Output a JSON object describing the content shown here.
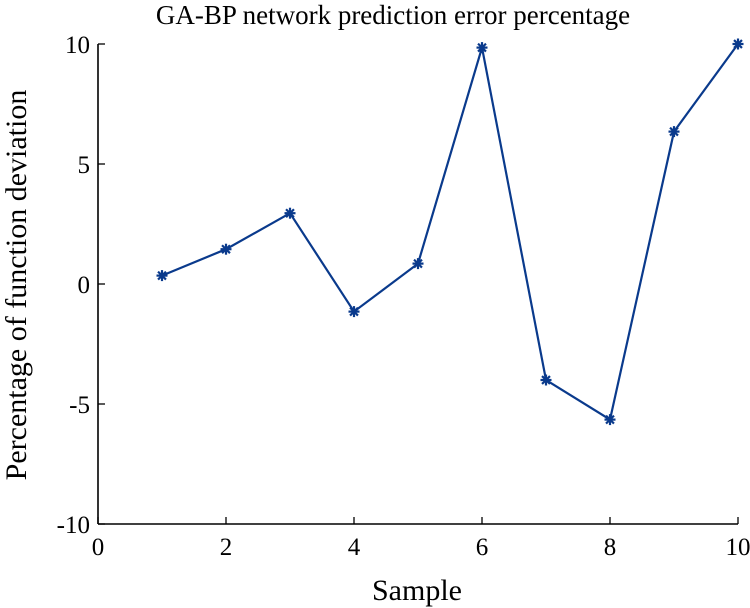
{
  "chart_data": {
    "type": "line",
    "title": "GA-BP network prediction error percentage",
    "xlabel": "Sample",
    "ylabel": "Percentage of function deviation",
    "xlim": [
      0,
      10
    ],
    "ylim": [
      -10,
      10
    ],
    "xticks": [
      0,
      2,
      4,
      6,
      8,
      10
    ],
    "yticks": [
      -10,
      -5,
      0,
      5,
      10
    ],
    "xtick_labels": [
      "0",
      "2",
      "4",
      "6",
      "8",
      "10"
    ],
    "ytick_labels": [
      "-10",
      "-5",
      "0",
      "5",
      "10"
    ],
    "grid": false,
    "marker": "asterisk",
    "line_color": "#0a3a8c",
    "series": [
      {
        "x": [
          1,
          2,
          3,
          4,
          5,
          6,
          7,
          8,
          9,
          10
        ],
        "values": [
          0.35,
          1.45,
          2.95,
          -1.15,
          0.85,
          9.85,
          -4.0,
          -5.65,
          6.35,
          10.0
        ]
      }
    ]
  }
}
